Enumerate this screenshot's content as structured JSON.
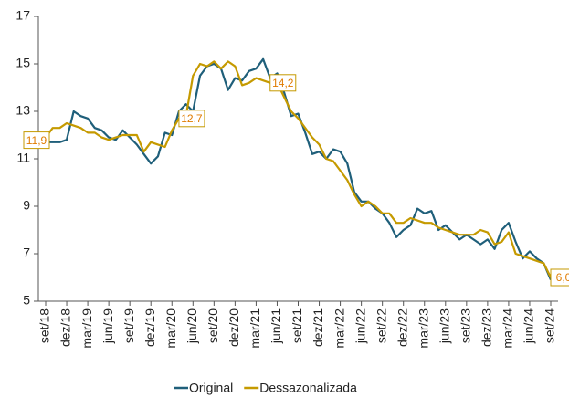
{
  "chart_data": {
    "type": "line",
    "categories": [
      "set/18",
      null,
      null,
      "dez/18",
      null,
      null,
      "mar/19",
      null,
      null,
      "jun/19",
      null,
      null,
      "set/19",
      null,
      null,
      "dez/19",
      null,
      null,
      "mar/20",
      null,
      null,
      "jun/20",
      null,
      null,
      "set/20",
      null,
      null,
      "dez/20",
      null,
      null,
      "mar/21",
      null,
      null,
      "jun/21",
      null,
      null,
      "set/21",
      null,
      null,
      "dez/21",
      null,
      null,
      "mar/22",
      null,
      null,
      "jun/22",
      null,
      null,
      "set/22",
      null,
      null,
      "dez/22",
      null,
      null,
      "mar/23",
      null,
      null,
      "jun/23",
      null,
      null,
      "set/23",
      null,
      null,
      "dez/23",
      null,
      null,
      "mar/24",
      null,
      null,
      "jun/24",
      null,
      null,
      "set/24"
    ],
    "series": [
      {
        "name": "Original",
        "color": "#1f5f7a",
        "values": [
          11.7,
          11.7,
          11.7,
          11.8,
          13.0,
          12.8,
          12.7,
          12.3,
          12.2,
          11.9,
          11.8,
          12.2,
          11.9,
          11.6,
          11.2,
          10.8,
          11.1,
          12.1,
          12.0,
          13.0,
          13.3,
          13.0,
          14.5,
          14.9,
          15.0,
          14.8,
          13.9,
          14.4,
          14.3,
          14.7,
          14.8,
          15.2,
          14.4,
          14.6,
          13.8,
          12.8,
          12.9,
          12.1,
          11.2,
          11.3,
          11.0,
          11.4,
          11.3,
          10.8,
          9.6,
          9.2,
          9.2,
          8.9,
          8.7,
          8.3,
          7.7,
          8.0,
          8.2,
          8.9,
          8.7,
          8.8,
          8.0,
          8.2,
          7.9,
          7.6,
          7.8,
          7.6,
          7.4,
          7.6,
          7.2,
          8.0,
          8.3,
          7.5,
          6.8,
          7.1,
          6.8,
          6.6,
          5.9
        ]
      },
      {
        "name": "Dessazonalizada",
        "color": "#c59a00",
        "values": [
          11.9,
          12.3,
          12.3,
          12.5,
          12.4,
          12.3,
          12.1,
          12.1,
          11.9,
          11.8,
          11.9,
          12.0,
          12.0,
          12.0,
          11.3,
          11.7,
          11.6,
          11.5,
          12.2,
          12.7,
          12.8,
          14.5,
          15.0,
          14.9,
          15.1,
          14.8,
          15.1,
          14.9,
          14.1,
          14.2,
          14.4,
          14.3,
          14.2,
          14.2,
          13.6,
          13.0,
          12.7,
          12.3,
          11.9,
          11.6,
          11.0,
          10.9,
          10.5,
          10.1,
          9.5,
          9.0,
          9.2,
          9.0,
          8.7,
          8.7,
          8.3,
          8.3,
          8.5,
          8.4,
          8.3,
          8.3,
          8.1,
          8.0,
          7.9,
          7.8,
          7.8,
          7.8,
          8.0,
          7.9,
          7.4,
          7.5,
          7.9,
          7.0,
          6.9,
          6.8,
          6.7,
          6.6,
          6.0
        ],
        "value_labels": [
          "11,9",
          null,
          null,
          null,
          null,
          null,
          null,
          null,
          null,
          null,
          null,
          null,
          null,
          null,
          null,
          null,
          null,
          null,
          null,
          "12,7",
          null,
          null,
          null,
          null,
          null,
          null,
          null,
          null,
          null,
          null,
          null,
          null,
          "14,2",
          null,
          null,
          null,
          null,
          null,
          null,
          null,
          null,
          null,
          null,
          null,
          null,
          null,
          null,
          null,
          null,
          null,
          null,
          null,
          null,
          null,
          null,
          null,
          null,
          null,
          null,
          null,
          null,
          null,
          null,
          null,
          null,
          null,
          null,
          null,
          null,
          null,
          null,
          null,
          "6,0"
        ]
      }
    ],
    "ylim": [
      5,
      17
    ],
    "yticks": [
      5,
      7,
      9,
      11,
      13,
      15,
      17
    ],
    "grid": false,
    "legend": "bottom"
  }
}
